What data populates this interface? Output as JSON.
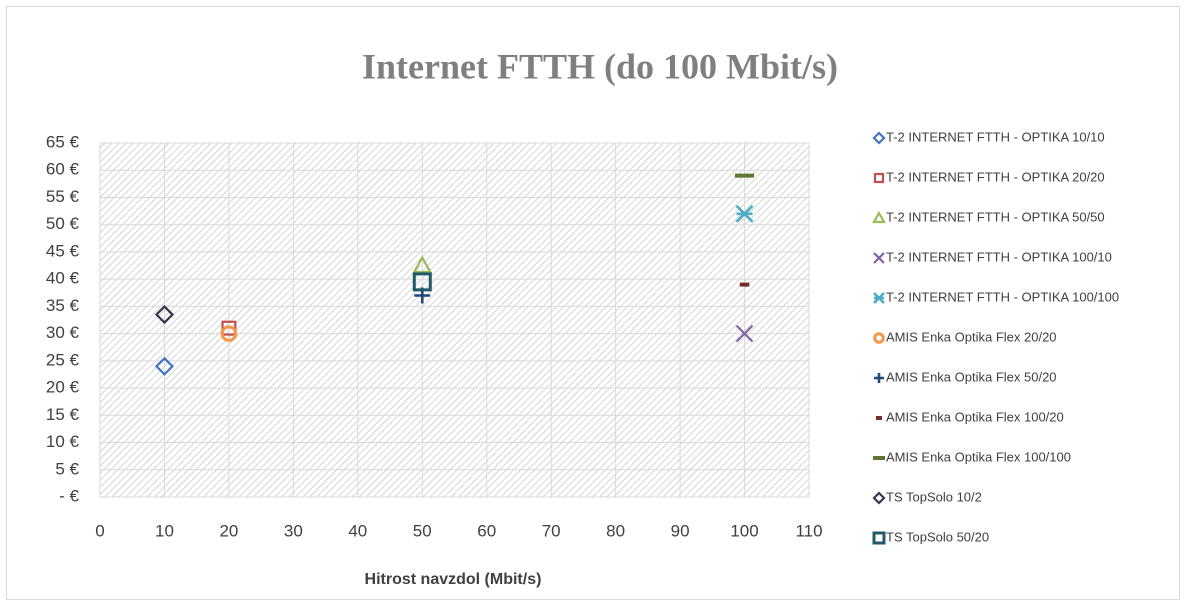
{
  "chart_data": {
    "type": "scatter",
    "title": "Internet FTTH (do 100 Mbit/s)",
    "x_label": "Hitrost navzdol (Mbit/s)",
    "xlim": [
      0,
      110
    ],
    "xticks": [
      0,
      10,
      20,
      30,
      40,
      50,
      60,
      70,
      80,
      90,
      100,
      110
    ],
    "ylim": [
      0,
      65
    ],
    "yticks": [
      {
        "value": 0,
        "label": "- €"
      },
      {
        "value": 5,
        "label": "5 €"
      },
      {
        "value": 10,
        "label": "10 €"
      },
      {
        "value": 15,
        "label": "15 €"
      },
      {
        "value": 20,
        "label": "20 €"
      },
      {
        "value": 25,
        "label": "25 €"
      },
      {
        "value": 30,
        "label": "30 €"
      },
      {
        "value": 35,
        "label": "35 €"
      },
      {
        "value": 40,
        "label": "40 €"
      },
      {
        "value": 45,
        "label": "45 €"
      },
      {
        "value": 50,
        "label": "50 €"
      },
      {
        "value": 55,
        "label": "55 €"
      },
      {
        "value": 60,
        "label": "60 €"
      },
      {
        "value": 65,
        "label": "65 €"
      }
    ],
    "grid": true,
    "legend": "right",
    "series": [
      {
        "name": "T-2 INTERNET FTTH - OPTIKA 10/10",
        "color": "#4472c4",
        "marker": "diamond",
        "x": [
          10
        ],
        "values": [
          24
        ]
      },
      {
        "name": "T-2 INTERNET FTTH - OPTIKA 20/20",
        "color": "#c0504d",
        "marker": "square",
        "x": [
          20
        ],
        "values": [
          31
        ]
      },
      {
        "name": "T-2 INTERNET FTTH - OPTIKA 50/50",
        "color": "#9bbb59",
        "marker": "triangle",
        "x": [
          50
        ],
        "values": [
          42.5
        ]
      },
      {
        "name": "T-2 INTERNET FTTH - OPTIKA 100/10",
        "color": "#8064a2",
        "marker": "x",
        "x": [
          100
        ],
        "values": [
          30
        ]
      },
      {
        "name": "T-2 INTERNET FTTH - OPTIKA 100/100",
        "color": "#4bacc6",
        "marker": "star",
        "x": [
          100
        ],
        "values": [
          52
        ]
      },
      {
        "name": "AMIS  Enka Optika Flex 20/20",
        "color": "#f79646",
        "marker": "circle",
        "x": [
          20
        ],
        "values": [
          30
        ]
      },
      {
        "name": "AMIS  Enka Optika Flex 50/20",
        "color": "#1f497d",
        "marker": "plus",
        "x": [
          50
        ],
        "values": [
          37
        ]
      },
      {
        "name": "AMIS  Enka Optika Flex 100/20",
        "color": "#772c2a",
        "marker": "dash",
        "x": [
          100
        ],
        "values": [
          39
        ]
      },
      {
        "name": "AMIS  Enka Optika Flex 100/100",
        "color": "#5f7530",
        "marker": "longdash",
        "x": [
          100
        ],
        "values": [
          59
        ]
      },
      {
        "name": "TS  TopSolo 10/2",
        "color": "#403152",
        "marker": "diamond",
        "x": [
          10
        ],
        "values": [
          33.5
        ]
      },
      {
        "name": "TS  TopSolo 50/20",
        "color": "#215968",
        "marker": "bigsquare",
        "x": [
          50
        ],
        "values": [
          39.5
        ]
      }
    ]
  }
}
